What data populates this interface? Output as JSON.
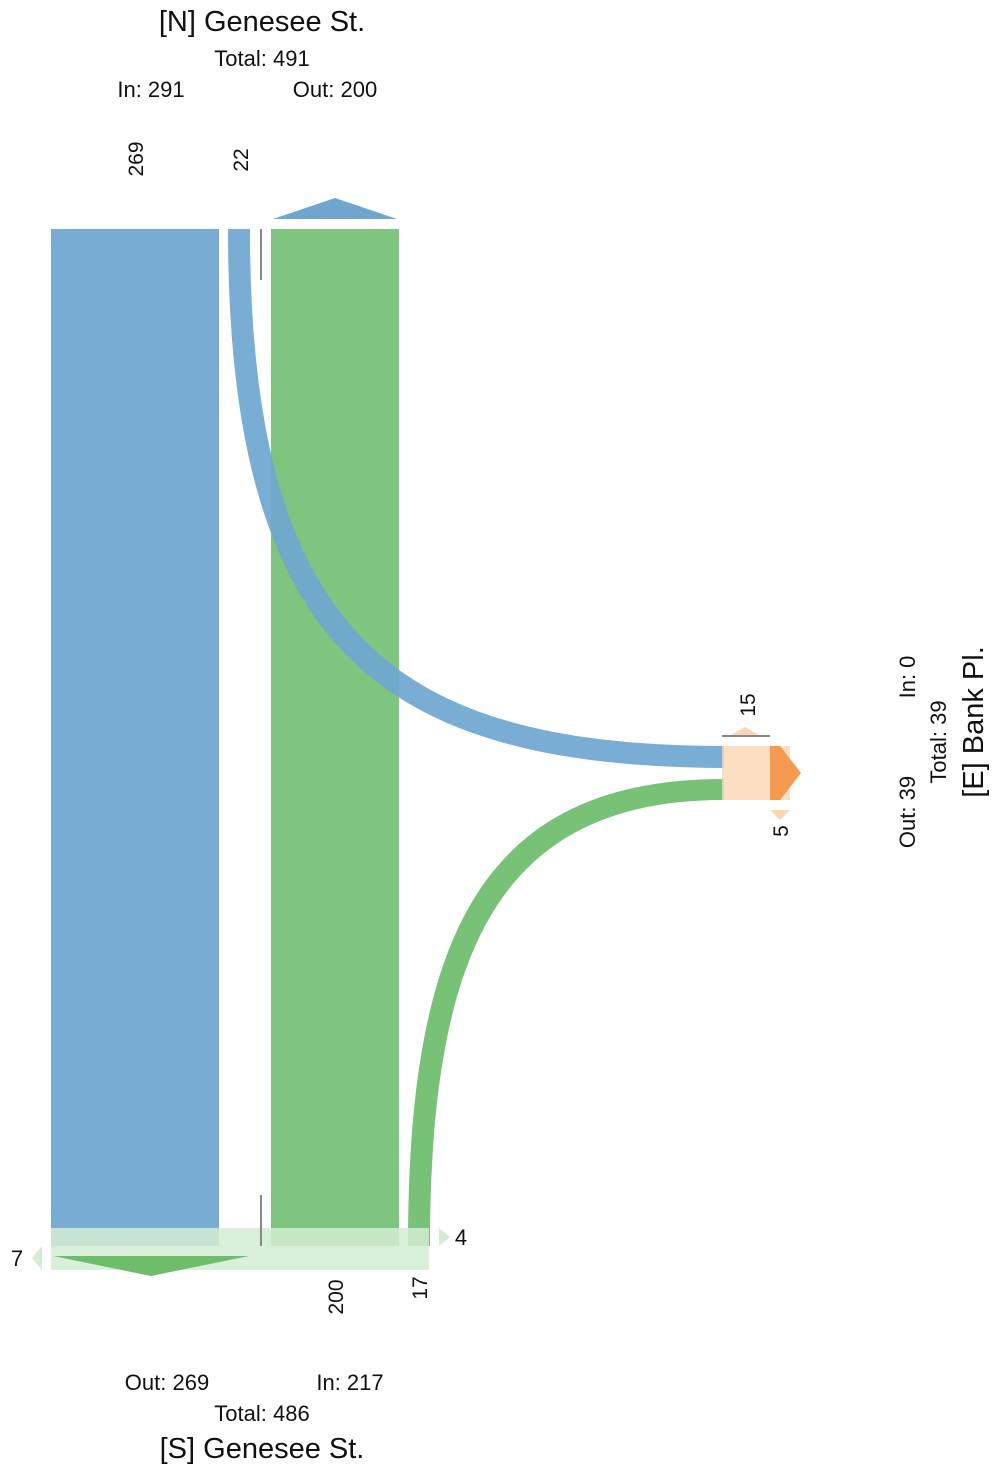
{
  "north": {
    "name": "[N] Genesee St.",
    "total": "Total: 491",
    "in": "In: 291",
    "out": "Out: 200",
    "flow_through": "269",
    "flow_right": "22"
  },
  "south": {
    "name": "[S] Genesee St.",
    "total": "Total: 486",
    "out": "Out: 269",
    "in": "In: 217",
    "flow_through": "200",
    "flow_left": "17",
    "left_val": "7",
    "right_val": "4"
  },
  "east": {
    "name": "[E] Bank Pl.",
    "total": "Total: 39",
    "in": "In: 0",
    "out": "Out: 39",
    "upper_val": "15",
    "lower_val": "5"
  },
  "colors": {
    "north": "#6fa6cf",
    "south": "#6dbd6d",
    "east": "#f59a4e",
    "east_light": "#fbd6b4",
    "south_light": "#d4ecd4",
    "tick": "#888888"
  }
}
